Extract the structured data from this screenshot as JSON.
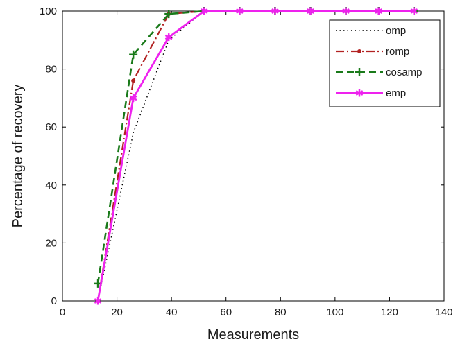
{
  "chart_data": {
    "type": "line",
    "xlabel": "Measurements",
    "ylabel": "Percentage of recovery",
    "xlim": [
      0,
      140
    ],
    "ylim": [
      0,
      100
    ],
    "xticks": [
      0,
      20,
      40,
      60,
      80,
      100,
      120,
      140
    ],
    "yticks": [
      0,
      20,
      40,
      60,
      80,
      100
    ],
    "grid": false,
    "legend_position": "top-right",
    "x": [
      13,
      26,
      39,
      52,
      65,
      78,
      91,
      104,
      116,
      129
    ],
    "series": [
      {
        "name": "omp",
        "values": [
          0,
          58,
          90,
          100,
          100,
          100,
          100,
          100,
          100,
          100
        ],
        "color": "#000000",
        "dash": "1.5,4",
        "marker": "none",
        "width": 1.5
      },
      {
        "name": "romp",
        "values": [
          0,
          76,
          99,
          100,
          100,
          100,
          100,
          100,
          100,
          100
        ],
        "color": "#b22222",
        "dash": "12,4,2,4",
        "marker": "dot",
        "width": 2.2
      },
      {
        "name": "cosamp",
        "values": [
          6,
          85,
          99,
          100,
          100,
          100,
          100,
          100,
          100,
          100
        ],
        "color": "#1a7a1a",
        "dash": "10,6",
        "marker": "plus",
        "width": 2.6
      },
      {
        "name": "emp",
        "values": [
          0,
          70,
          91,
          100,
          100,
          100,
          100,
          100,
          100,
          100
        ],
        "color": "#ee22ee",
        "dash": "",
        "marker": "star",
        "width": 2.8
      }
    ]
  }
}
